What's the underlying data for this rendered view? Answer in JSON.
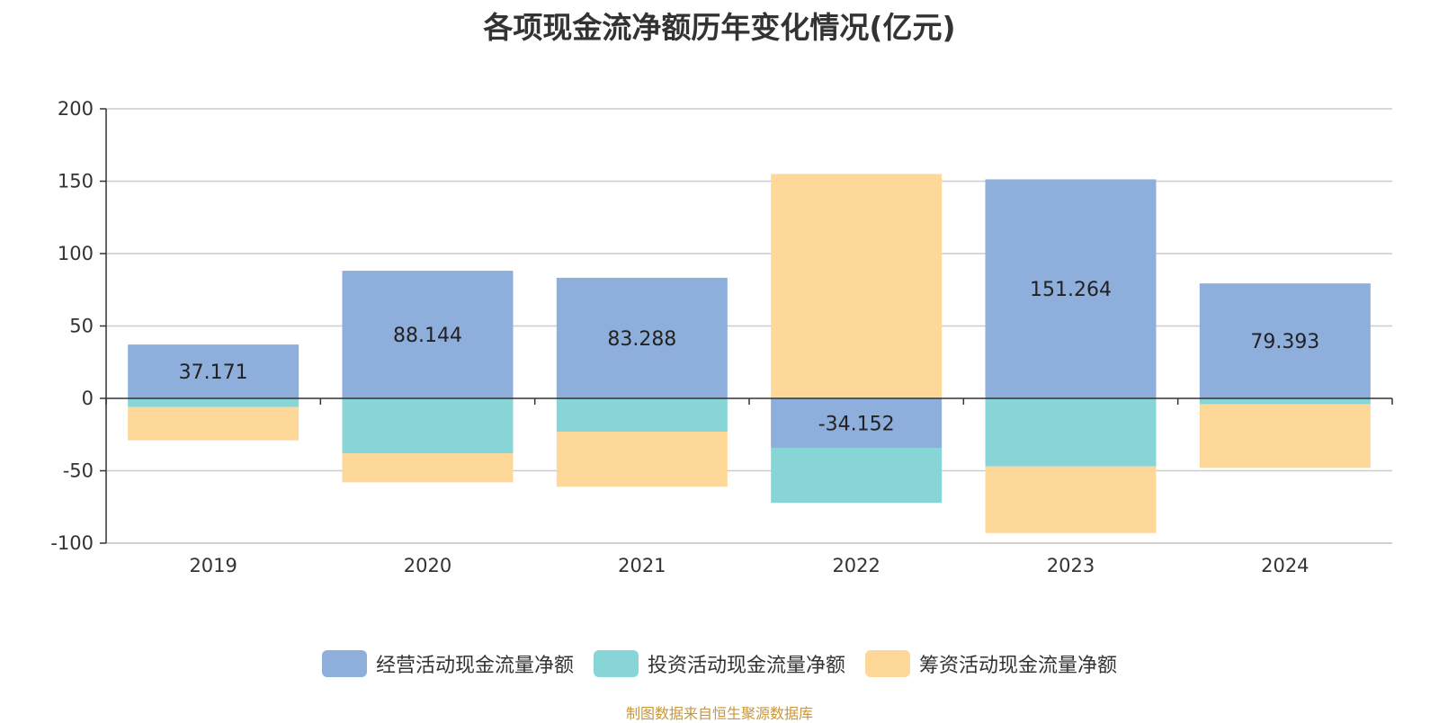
{
  "chart_data": {
    "type": "bar",
    "stacked": true,
    "title": "各项现金流净额历年变化情况(亿元)",
    "categories": [
      "2019",
      "2020",
      "2021",
      "2022",
      "2023",
      "2024"
    ],
    "series": [
      {
        "name": "经营活动现金流量净额",
        "color": "#8eaedb",
        "values": [
          37.171,
          88.144,
          83.288,
          -34.152,
          151.264,
          79.393
        ]
      },
      {
        "name": "投资活动现金流量净额",
        "color": "#88d5d8",
        "values": [
          -6,
          -38,
          -23,
          -38,
          -47,
          -4
        ]
      },
      {
        "name": "筹资活动现金流量净额",
        "color": "#fed899",
        "values": [
          -23,
          -20,
          -38,
          155,
          -46,
          -44
        ]
      }
    ],
    "labeled_series": 0,
    "data_labels": [
      "37.171",
      "88.144",
      "83.288",
      "-34.152",
      "151.264",
      "79.393"
    ],
    "y_ticks": [
      "200",
      "150",
      "100",
      "50",
      "0",
      "-50",
      "-100"
    ],
    "y_tick_values": [
      200,
      150,
      100,
      50,
      0,
      -50,
      -100
    ],
    "ylim": [
      -100,
      200
    ],
    "grid": true,
    "legend_position": "bottom",
    "source": "制图数据来自恒生聚源数据库"
  }
}
